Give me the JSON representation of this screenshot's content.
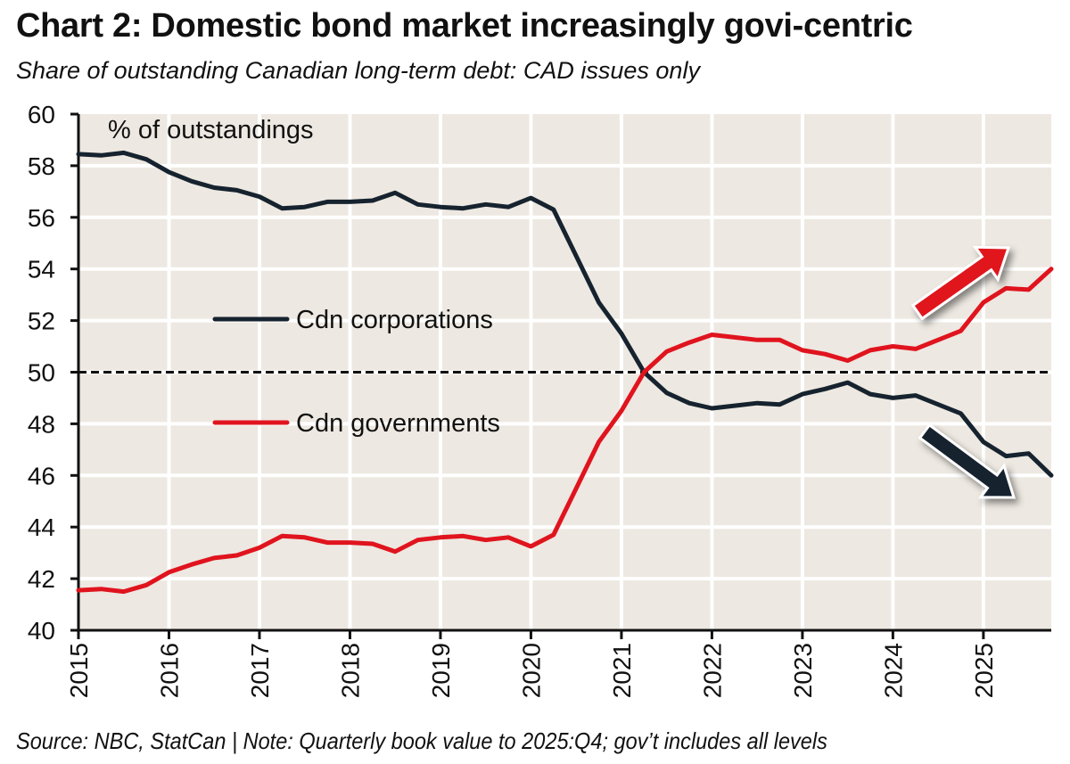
{
  "header": {
    "title": "Chart 2: Domestic bond market increasingly govi-centric",
    "subtitle": "Share of outstanding Canadian long-term debt: CAD issues only"
  },
  "footer": {
    "source_note": "Source: NBC, StatCan | Note: Quarterly book value to 2025:Q4; gov’t includes all levels"
  },
  "colors": {
    "plot_background": "#ede8e1",
    "gridline": "#ffffff",
    "corporations": "#16232f",
    "governments": "#e0141e",
    "axis": "#111111",
    "reference_line": "#111111"
  },
  "chart_data": {
    "type": "line",
    "title": "Chart 2: Domestic bond market increasingly govi-centric",
    "subtitle": "Share of outstanding Canadian long-term debt: CAD issues only",
    "xlabel": "",
    "ylabel": "% of outstandings",
    "unit_label": "% of outstandings",
    "frequency": "quarterly",
    "x_start": 2015.0,
    "x_step": 0.25,
    "xlim": [
      2015,
      2025.75
    ],
    "ylim": [
      40,
      60
    ],
    "x_ticks": [
      "2015",
      "2016",
      "2017",
      "2018",
      "2019",
      "2020",
      "2021",
      "2022",
      "2023",
      "2024",
      "2025"
    ],
    "y_ticks": [
      "40",
      "42",
      "44",
      "46",
      "48",
      "50",
      "52",
      "54",
      "56",
      "58",
      "60"
    ],
    "grid": true,
    "reference_line": {
      "y": 50,
      "style": "dashed"
    },
    "legend": {
      "placement": "center-left",
      "entries": [
        "Cdn corporations",
        "Cdn governments"
      ]
    },
    "annotations": [
      {
        "type": "arrow",
        "direction": "up",
        "series": "Cdn governments",
        "near": "2025"
      },
      {
        "type": "arrow",
        "direction": "down",
        "series": "Cdn corporations",
        "near": "2025"
      }
    ],
    "series": [
      {
        "name": "Cdn corporations",
        "color": "#16232f",
        "values": [
          58.45,
          58.4,
          58.5,
          58.25,
          57.75,
          57.4,
          57.15,
          57.05,
          56.8,
          56.35,
          56.4,
          56.6,
          56.6,
          56.65,
          56.95,
          56.5,
          56.4,
          56.35,
          56.5,
          56.4,
          56.75,
          56.3,
          54.5,
          52.7,
          51.5,
          50.0,
          49.2,
          48.8,
          48.6,
          48.7,
          48.8,
          48.75,
          49.15,
          49.35,
          49.6,
          49.15,
          49.0,
          49.1,
          48.75,
          48.4,
          47.3,
          46.75,
          46.85,
          46.0
        ]
      },
      {
        "name": "Cdn governments",
        "color": "#e0141e",
        "values": [
          41.55,
          41.6,
          41.5,
          41.75,
          42.25,
          42.55,
          42.8,
          42.9,
          43.2,
          43.65,
          43.6,
          43.4,
          43.4,
          43.35,
          43.05,
          43.5,
          43.6,
          43.65,
          43.5,
          43.6,
          43.25,
          43.7,
          45.5,
          47.3,
          48.5,
          50.0,
          50.8,
          51.15,
          51.45,
          51.35,
          51.25,
          51.25,
          50.85,
          50.7,
          50.45,
          50.85,
          51.0,
          50.9,
          51.25,
          51.6,
          52.7,
          53.25,
          53.2,
          54.0
        ]
      }
    ]
  }
}
